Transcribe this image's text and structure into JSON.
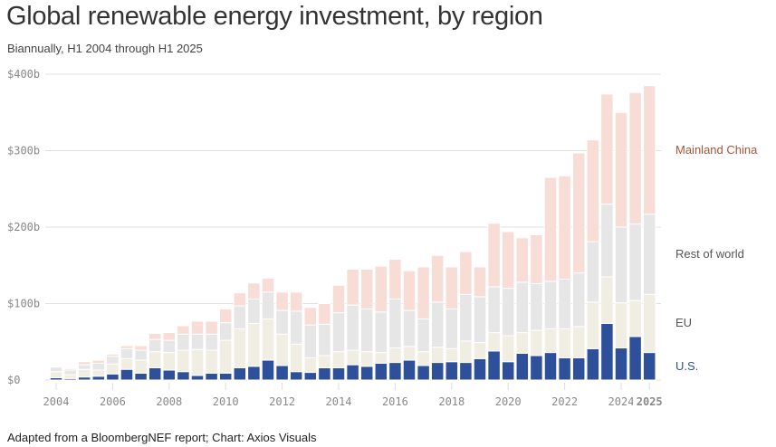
{
  "chart_data": {
    "type": "bar",
    "stacked": true,
    "title": "Global renewable energy investment, by region",
    "subtitle": "Biannually, H1 2004 through H1 2025",
    "source": "Adapted from a BloombergNEF report; Chart: Axios Visuals",
    "ylim": [
      0,
      400
    ],
    "yticks": [
      "$0",
      "$100b",
      "$200b",
      "$300b",
      "$400b"
    ],
    "ytick_values": [
      0,
      100,
      200,
      300,
      400
    ],
    "xticks": [
      "2004",
      "2006",
      "2008",
      "2010",
      "2012",
      "2014",
      "2016",
      "2018",
      "2020",
      "2022",
      "2024",
      "2025"
    ],
    "xtick_values": [
      2004,
      2006,
      2008,
      2010,
      2012,
      2014,
      2016,
      2018,
      2020,
      2022,
      2024,
      2025
    ],
    "x_start": 2004,
    "period": 0.5,
    "count": 43,
    "series": [
      {
        "name": "U.S.",
        "color": "#2e4f99",
        "values": [
          3,
          2,
          4,
          5,
          8,
          14,
          9,
          16,
          13,
          11,
          6,
          9,
          9,
          16,
          18,
          26,
          19,
          11,
          10,
          16,
          16,
          20,
          18,
          22,
          23,
          26,
          19,
          23,
          24,
          23,
          28,
          38,
          24,
          35,
          32,
          36,
          29,
          29,
          41,
          74,
          42,
          57,
          36
        ]
      },
      {
        "name": "EU",
        "color": "#f0eee2",
        "values": [
          8,
          5,
          10,
          8,
          13,
          14,
          17,
          21,
          23,
          28,
          34,
          30,
          43,
          51,
          56,
          54,
          41,
          36,
          19,
          16,
          21,
          19,
          19,
          14,
          19,
          18,
          18,
          20,
          17,
          28,
          21,
          24,
          34,
          27,
          33,
          31,
          38,
          41,
          61,
          61,
          59,
          47,
          76
        ]
      },
      {
        "name": "Rest of world",
        "color": "#e6e6e6",
        "values": [
          6,
          6,
          6,
          9,
          10,
          13,
          13,
          16,
          16,
          21,
          20,
          21,
          23,
          30,
          32,
          35,
          31,
          43,
          43,
          41,
          51,
          59,
          56,
          53,
          64,
          47,
          43,
          59,
          52,
          61,
          60,
          60,
          62,
          66,
          61,
          62,
          65,
          70,
          79,
          95,
          99,
          100,
          105
        ]
      },
      {
        "name": "Mainland China",
        "color": "#f8ddd6",
        "values": [
          0,
          2,
          4,
          4,
          3,
          4,
          6,
          8,
          10,
          11,
          17,
          17,
          18,
          17,
          21,
          18,
          24,
          25,
          23,
          27,
          36,
          47,
          52,
          60,
          52,
          52,
          68,
          61,
          55,
          56,
          39,
          83,
          74,
          58,
          64,
          136,
          135,
          157,
          133,
          144,
          150,
          172,
          168
        ]
      }
    ],
    "label_colors": {
      "U.S.": "#2e4f99",
      "EU": "#555555",
      "Rest of world": "#555555",
      "Mainland China": "#a9533a"
    }
  }
}
